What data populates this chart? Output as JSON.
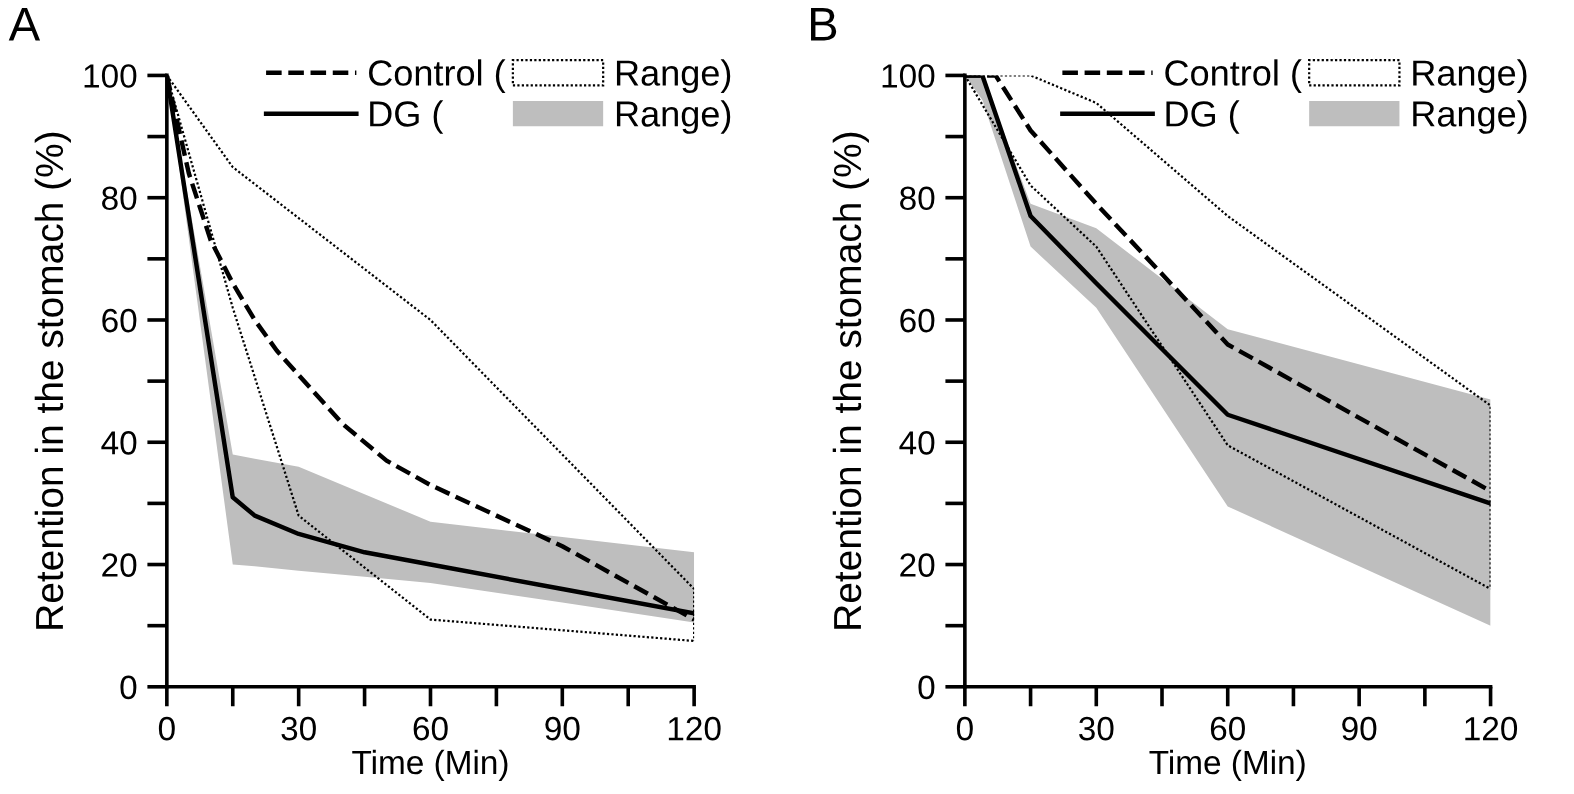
{
  "chart_data": [
    {
      "type": "line",
      "title": "A",
      "xlabel": "Time (Min)",
      "ylabel": "Retention in the stomach (%)",
      "xlim": [
        0,
        120
      ],
      "ylim": [
        0,
        100
      ],
      "xticks": [
        0,
        {
          "value": 15,
          "label": null
        },
        30,
        {
          "value": 45,
          "label": null
        },
        60,
        {
          "value": 75,
          "label": null
        },
        90,
        {
          "value": 105,
          "label": null
        },
        120
      ],
      "yticks": [
        0,
        {
          "value": 10,
          "label": null
        },
        20,
        {
          "value": 30,
          "label": null
        },
        40,
        {
          "value": 50,
          "label": null
        },
        60,
        {
          "value": 70,
          "label": null
        },
        80,
        {
          "value": 90,
          "label": null
        },
        100
      ],
      "legend": "top right",
      "grid": false,
      "annotations": [
        "Range)"
      ],
      "series": [
        {
          "name": "Control (",
          "type": "line",
          "line_style": "dashed",
          "color": "#000000",
          "x": [
            0,
            5,
            10,
            15,
            20,
            25,
            30,
            40,
            50,
            60,
            75,
            90,
            105,
            120
          ],
          "values": [
            100,
            84,
            73,
            66,
            60,
            55,
            51,
            43,
            37,
            33,
            28,
            23,
            17,
            11
          ]
        },
        {
          "name": "DG (",
          "type": "line",
          "line_style": "solid",
          "color": "#000000",
          "x": [
            0,
            15,
            20,
            30,
            45,
            60,
            90,
            120
          ],
          "values": [
            100,
            31,
            28,
            25,
            22,
            20,
            16,
            12
          ],
          "lower": [
            100,
            20,
            19.7,
            19,
            18,
            17,
            13.8,
            10.5
          ],
          "upper": [
            100,
            38,
            37.3,
            36,
            31.5,
            27,
            24.5,
            22
          ]
        },
        {
          "name": "Range)",
          "type": "line",
          "line_style": "dotted",
          "color": "#000000",
          "x": [
            0,
            15,
            60,
            120,
            120
          ],
          "values": [
            100,
            85,
            60,
            16,
            7.5
          ]
        },
        {
          "type": "line",
          "line_style": "dotted",
          "color": "#000000",
          "x": [
            0,
            15,
            30,
            60,
            120
          ],
          "values": [
            100,
            62,
            28,
            11,
            7.5
          ]
        }
      ]
    },
    {
      "type": "line",
      "title": "B",
      "xlabel": "Time (Min)",
      "ylabel": "Retention in the stomach (%)",
      "xlim": [
        0,
        120
      ],
      "ylim": [
        0,
        100
      ],
      "xticks": [
        0,
        {
          "value": 15,
          "label": null
        },
        30,
        {
          "value": 45,
          "label": null
        },
        60,
        {
          "value": 75,
          "label": null
        },
        90,
        {
          "value": 105,
          "label": null
        },
        120
      ],
      "yticks": [
        0,
        {
          "value": 10,
          "label": null
        },
        20,
        {
          "value": 30,
          "label": null
        },
        40,
        {
          "value": 50,
          "label": null
        },
        60,
        {
          "value": 70,
          "label": null
        },
        80,
        {
          "value": 90,
          "label": null
        },
        100
      ],
      "legend": "top right",
      "grid": false,
      "annotations": [
        "Range)"
      ],
      "series": [
        {
          "name": "Control (",
          "type": "line",
          "line_style": "dashed",
          "color": "#000000",
          "x": [
            0,
            7,
            15,
            30,
            60,
            120
          ],
          "values": [
            100,
            100,
            91,
            79,
            56,
            32
          ]
        },
        {
          "name": "DG (",
          "type": "line",
          "line_style": "solid",
          "color": "#000000",
          "x": [
            0,
            4,
            15,
            30,
            60,
            120
          ],
          "values": [
            100,
            100,
            77,
            66,
            44.5,
            30
          ],
          "lower": [
            100,
            96,
            72,
            62,
            29.5,
            10
          ],
          "upper": [
            100,
            100,
            79,
            75,
            58.5,
            47
          ]
        },
        {
          "name": "Range)",
          "type": "line",
          "line_style": "dotted",
          "color": "#000000",
          "x": [
            0,
            15,
            30,
            60,
            120,
            120
          ],
          "values": [
            100,
            100,
            95.5,
            77,
            46,
            16
          ]
        },
        {
          "type": "line",
          "line_style": "dotted",
          "color": "#000000",
          "x": [
            0,
            15,
            30,
            60,
            120
          ],
          "values": [
            100,
            82,
            72,
            39.5,
            16
          ]
        }
      ]
    }
  ]
}
